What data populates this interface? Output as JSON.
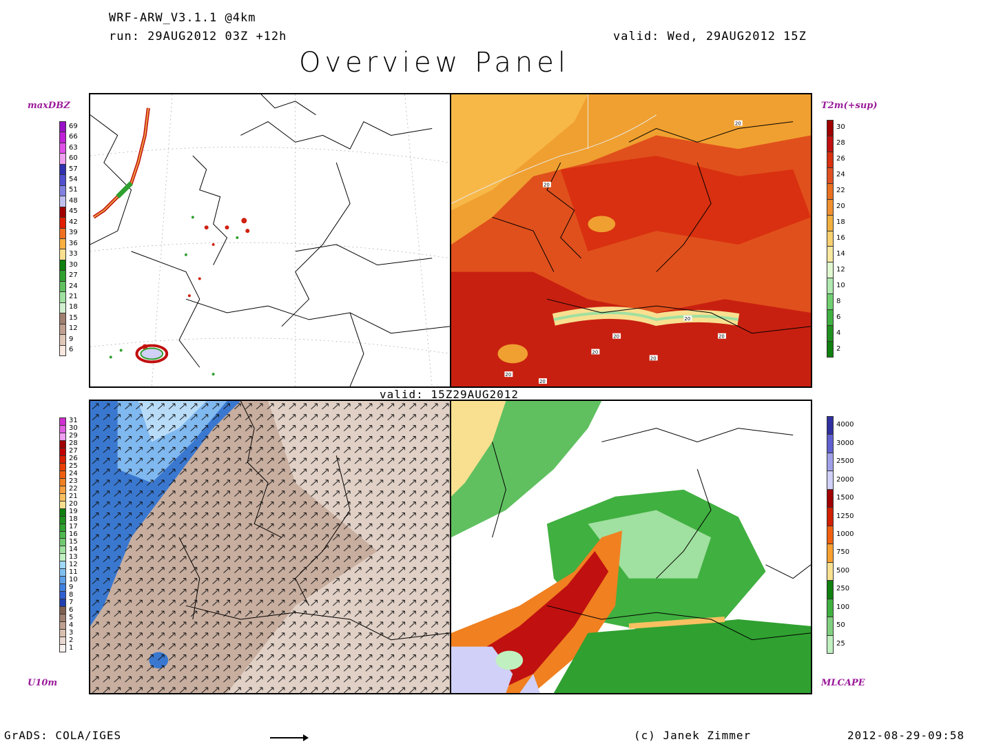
{
  "header": {
    "model": "WRF-ARW_V3.1.1 @4km",
    "run": "run: 29AUG2012 03Z +12h",
    "valid": "valid: Wed, 29AUG2012 15Z",
    "title": "Overview Panel"
  },
  "middle_valid": "valid: 15Z29AUG2012",
  "panels": {
    "maxdbz": {
      "label": "maxDBZ"
    },
    "t2m": {
      "label": "T2m(+sup)",
      "contour_labels": [
        "20",
        "20",
        "20",
        "20",
        "20",
        "20",
        "20",
        "20",
        "20"
      ]
    },
    "u10m": {
      "label": "U10m"
    },
    "mlcape": {
      "label": "MLCAPE"
    }
  },
  "colorbars": {
    "maxdbz": {
      "ticks": [
        "69",
        "66",
        "63",
        "60",
        "57",
        "54",
        "51",
        "48",
        "45",
        "42",
        "39",
        "36",
        "33",
        "30",
        "27",
        "24",
        "21",
        "18",
        "15",
        "12",
        "9",
        "6"
      ],
      "colors": [
        "#9a10c8",
        "#c020d8",
        "#e050e8",
        "#f0a0f0",
        "#3030b0",
        "#5050d0",
        "#8080e0",
        "#c0c0f0",
        "#a00000",
        "#e02000",
        "#f07020",
        "#f8b040",
        "#f8e090",
        "#108010",
        "#30a030",
        "#60c060",
        "#a0e0a0",
        "#d0f0d0",
        "#a08070",
        "#c0a090",
        "#e0c8b8",
        "#f8e8e0"
      ]
    },
    "t2m": {
      "ticks": [
        "30",
        "28",
        "26",
        "24",
        "22",
        "20",
        "18",
        "16",
        "14",
        "12",
        "10",
        "8",
        "6",
        "4",
        "2"
      ],
      "colors": [
        "#a00000",
        "#c01010",
        "#d83010",
        "#e05020",
        "#e87020",
        "#f09030",
        "#f0b040",
        "#f8d070",
        "#f8e8a0",
        "#e0f8d0",
        "#b0e8b0",
        "#70d070",
        "#40b040",
        "#209020",
        "#108010"
      ]
    },
    "u10m": {
      "ticks": [
        "31",
        "30",
        "29",
        "28",
        "27",
        "26",
        "25",
        "24",
        "23",
        "22",
        "21",
        "20",
        "19",
        "18",
        "17",
        "16",
        "15",
        "14",
        "13",
        "12",
        "11",
        "10",
        "9",
        "8",
        "7",
        "6",
        "5",
        "4",
        "3",
        "2",
        "1"
      ],
      "colors": [
        "#d030d0",
        "#e060e0",
        "#f0a0f0",
        "#a00000",
        "#c00000",
        "#d82000",
        "#e84000",
        "#f06010",
        "#f08020",
        "#f8a040",
        "#f8c060",
        "#f8e090",
        "#108010",
        "#209020",
        "#30a030",
        "#50b850",
        "#70c870",
        "#a0e0a0",
        "#c0f0c0",
        "#a0d8f8",
        "#80c0f0",
        "#60a0e8",
        "#4080e0",
        "#3060d0",
        "#2040b0",
        "#806050",
        "#a08070",
        "#c0a090",
        "#d8c0b0",
        "#e8d8d0",
        "#f8f0ec"
      ]
    },
    "mlcape": {
      "ticks": [
        "4000",
        "3000",
        "2500",
        "2000",
        "1500",
        "1250",
        "1000",
        "750",
        "500",
        "250",
        "100",
        "50",
        "25"
      ],
      "colors": [
        "#3030a0",
        "#6060d0",
        "#a0a0e8",
        "#d0d0f8",
        "#a00000",
        "#d02000",
        "#f06010",
        "#f8a030",
        "#f8e090",
        "#108010",
        "#40b040",
        "#80d080",
        "#c0f0c0"
      ]
    }
  },
  "footer": {
    "left": "GrADS: COLA/IGES",
    "center": "(c) Janek Zimmer",
    "right": "2012-08-29-09:58"
  }
}
